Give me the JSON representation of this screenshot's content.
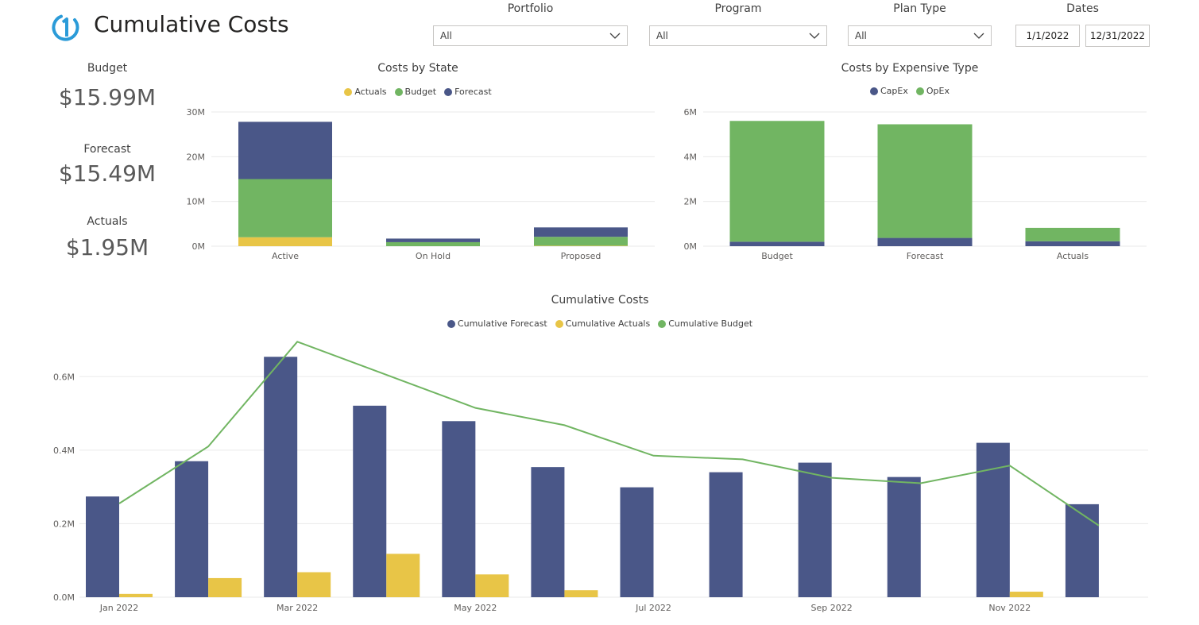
{
  "header": {
    "title": "Cumulative Costs"
  },
  "slicers": {
    "portfolio": {
      "label": "Portfolio",
      "value": "All"
    },
    "program": {
      "label": "Program",
      "value": "All"
    },
    "plan_type": {
      "label": "Plan Type",
      "value": "All"
    },
    "dates": {
      "label": "Dates",
      "start": "1/1/2022",
      "end": "12/31/2022"
    }
  },
  "kpis": {
    "budget": {
      "label": "Budget",
      "value": "$15.99M"
    },
    "forecast": {
      "label": "Forecast",
      "value": "$15.49M"
    },
    "actuals": {
      "label": "Actuals",
      "value": "$1.95M"
    }
  },
  "colors": {
    "actuals": "#E8C547",
    "budget": "#71B562",
    "forecast": "#4A5788",
    "capex": "#4A5788",
    "opex": "#71B562",
    "grid": "#EAEAEA",
    "axis_text": "#605E5C"
  },
  "chart_data": [
    {
      "id": "costs_by_state",
      "type": "bar",
      "stacked": true,
      "title": "Costs by State",
      "categories": [
        "Active",
        "On Hold",
        "Proposed"
      ],
      "series": [
        {
          "name": "Actuals",
          "color": "#E8C547",
          "values": [
            2.0,
            0.0,
            0.1
          ]
        },
        {
          "name": "Budget",
          "color": "#71B562",
          "values": [
            13.0,
            0.9,
            2.0
          ]
        },
        {
          "name": "Forecast",
          "color": "#4A5788",
          "values": [
            12.8,
            0.8,
            2.1
          ]
        }
      ],
      "y_ticks": [
        "0M",
        "10M",
        "20M",
        "30M"
      ],
      "ylim": [
        0,
        30
      ],
      "legend_position": "top-center",
      "grid": true
    },
    {
      "id": "costs_by_expensive_type",
      "type": "bar",
      "stacked": true,
      "title": "Costs by Expensive Type",
      "categories": [
        "Budget",
        "Forecast",
        "Actuals"
      ],
      "series": [
        {
          "name": "CapEx",
          "color": "#4A5788",
          "values": [
            0.2,
            0.37,
            0.22
          ]
        },
        {
          "name": "OpEx",
          "color": "#71B562",
          "values": [
            5.4,
            5.08,
            0.6
          ]
        }
      ],
      "y_ticks": [
        "0M",
        "2M",
        "4M",
        "6M"
      ],
      "ylim": [
        0,
        6
      ],
      "legend_position": "top-center",
      "grid": true
    },
    {
      "id": "cumulative_costs",
      "type": "bar",
      "title": "Cumulative Costs",
      "categories": [
        "Jan 2022",
        "Feb 2022",
        "Mar 2022",
        "Apr 2022",
        "May 2022",
        "Jun 2022",
        "Jul 2022",
        "Aug 2022",
        "Sep 2022",
        "Oct 2022",
        "Nov 2022",
        "Dec 2022"
      ],
      "x_tick_labels": [
        "Jan 2022",
        "Mar 2022",
        "May 2022",
        "Jul 2022",
        "Sep 2022",
        "Nov 2022"
      ],
      "series": [
        {
          "name": "Cumulative Forecast",
          "type": "bar",
          "color": "#4A5788",
          "values": [
            0.274,
            0.37,
            0.654,
            0.521,
            0.479,
            0.354,
            0.299,
            0.34,
            0.366,
            0.327,
            0.42,
            0.253
          ]
        },
        {
          "name": "Cumulative Actuals",
          "type": "bar",
          "color": "#E8C547",
          "values": [
            0.009,
            0.052,
            0.068,
            0.118,
            0.062,
            0.019,
            0.0,
            0.0,
            0.0,
            0.0,
            0.015,
            0.0
          ]
        },
        {
          "name": "Cumulative Budget",
          "type": "line",
          "color": "#71B562",
          "values": [
            0.255,
            0.41,
            0.695,
            0.605,
            0.515,
            0.468,
            0.385,
            0.375,
            0.325,
            0.31,
            0.358,
            0.195
          ]
        }
      ],
      "y_ticks": [
        "0.0M",
        "0.2M",
        "0.4M",
        "0.6M"
      ],
      "ylim": [
        0,
        0.7
      ],
      "legend_position": "top-center",
      "grid": true
    }
  ]
}
